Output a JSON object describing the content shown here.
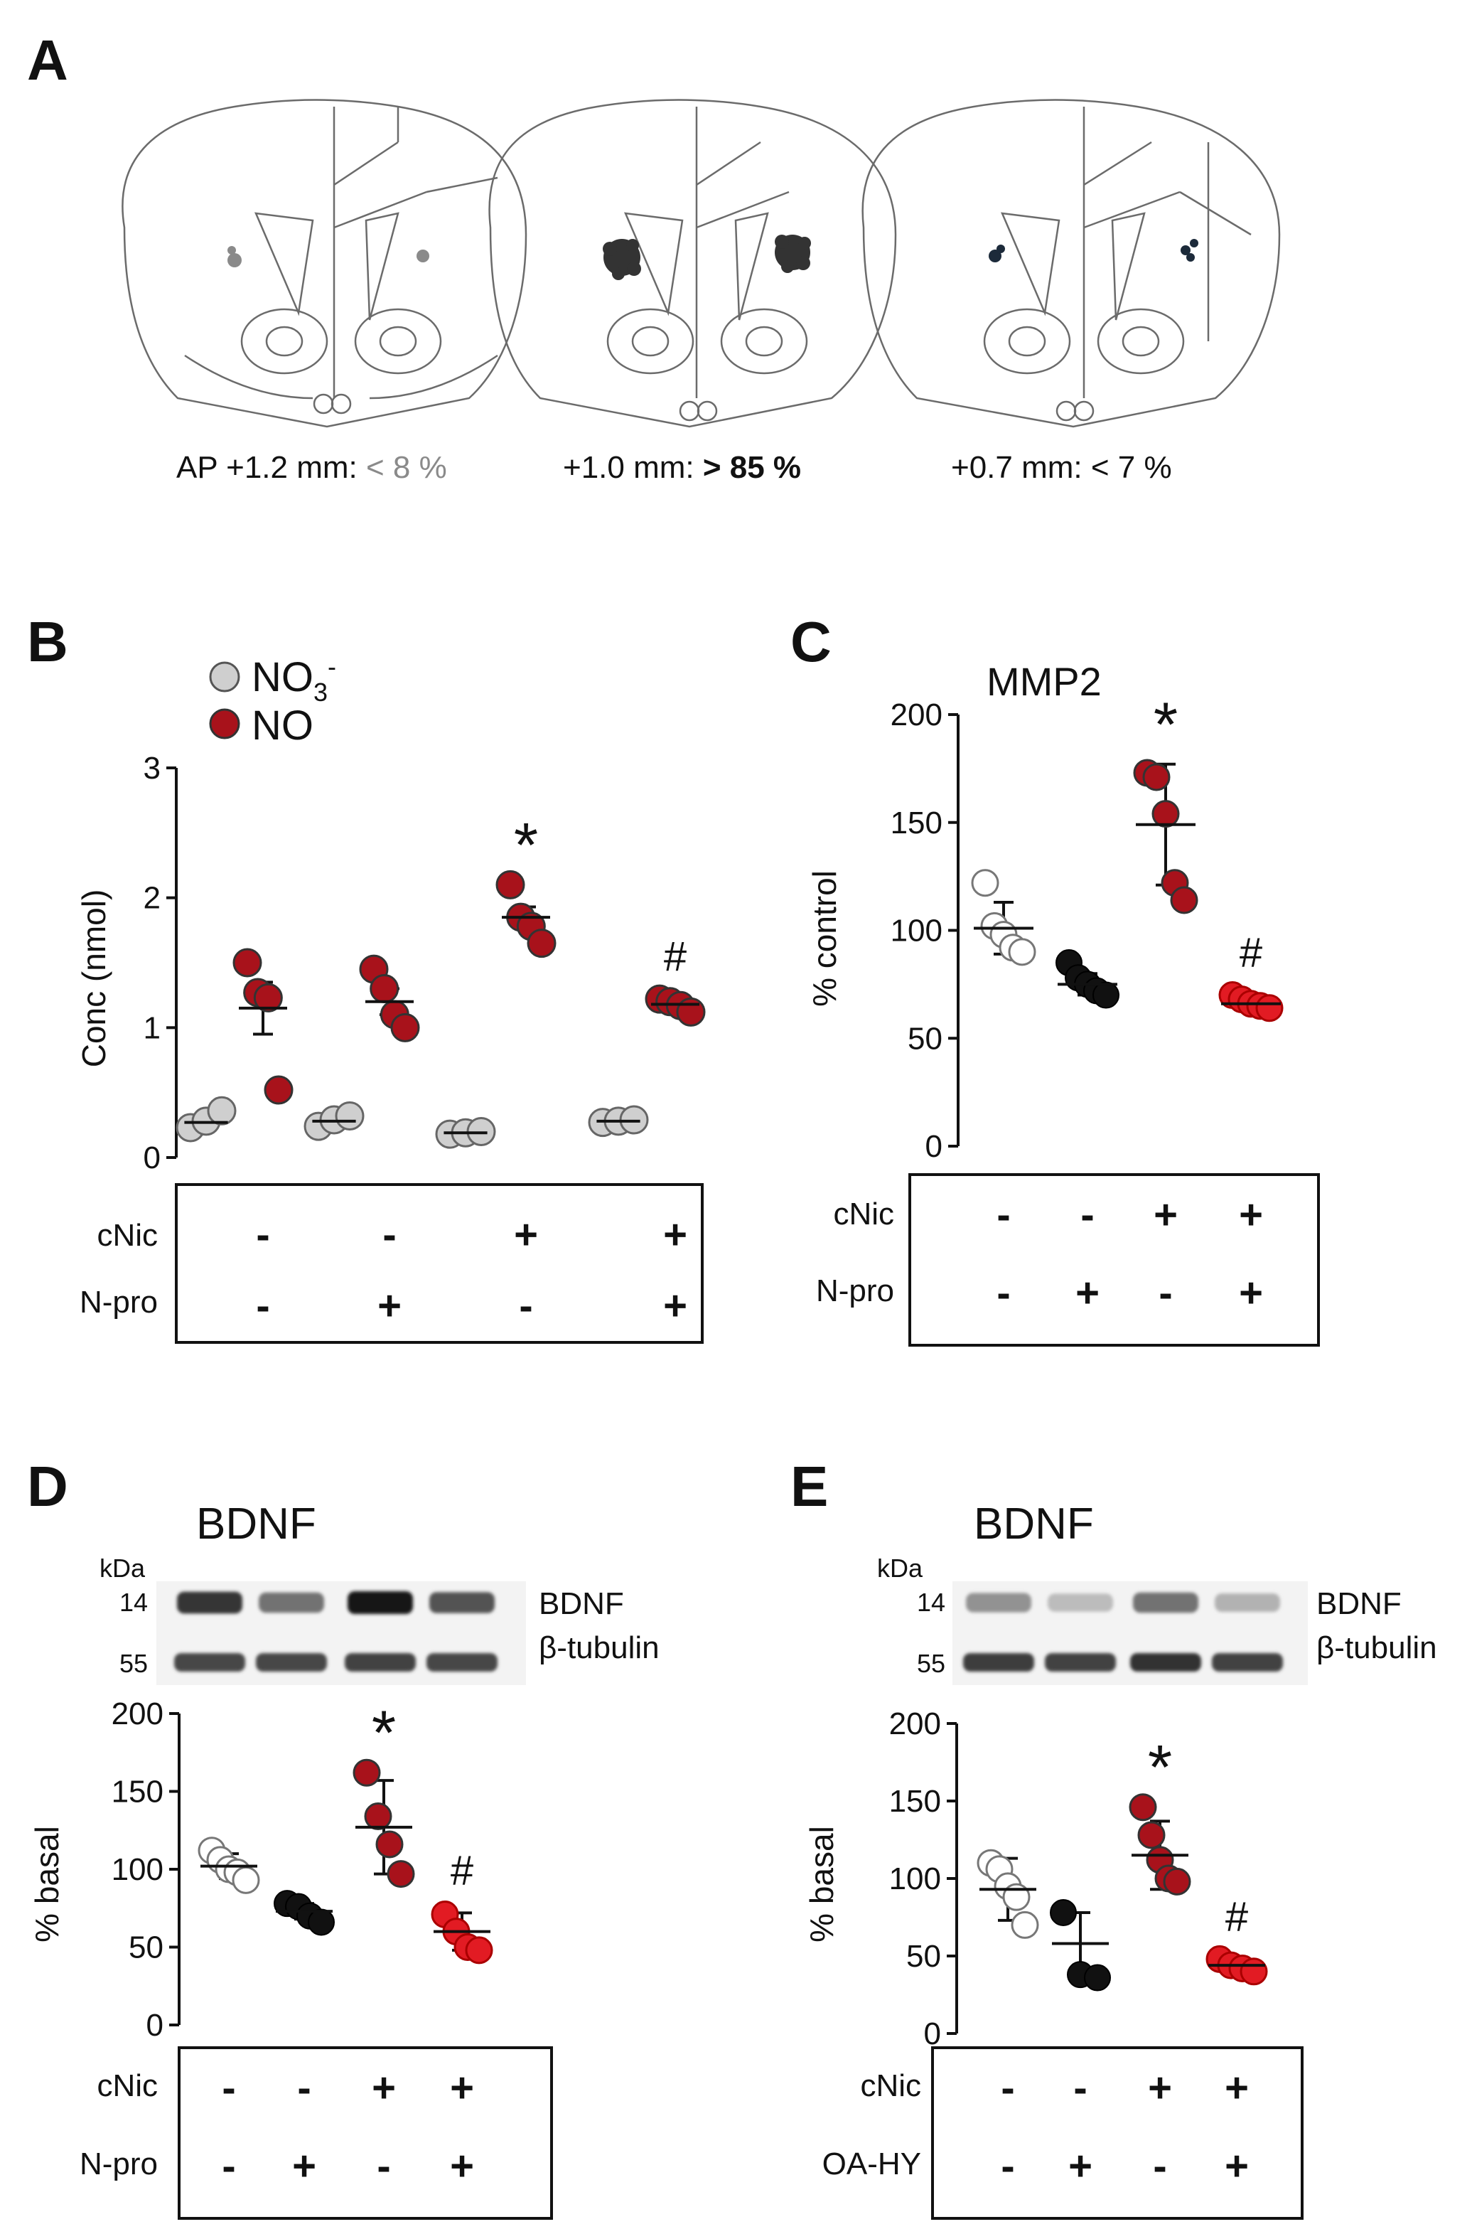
{
  "colors": {
    "no3": "#cfcfcf",
    "no": "#a8121b",
    "black": "#111111",
    "red": "#e21b23",
    "open": "#ffffff",
    "stroke": "#555555"
  },
  "panelA": {
    "label": "A",
    "sections": [
      {
        "prefix": "AP +1.2 mm: ",
        "value": "< 8 %",
        "site_color": "#8a8a8a"
      },
      {
        "prefix": "+1.0 mm: ",
        "value": "> 85 %",
        "site_color": "#333333"
      },
      {
        "prefix": "+0.7 mm: ",
        "value": "< 7 %",
        "site_color": "#1c2a3a"
      }
    ]
  },
  "treatments": {
    "cNic_label": "cNic",
    "npro_label": "N-pro",
    "oahy_label": "OA-HY",
    "cNic": [
      "-",
      "-",
      "+",
      "+"
    ],
    "second": [
      "-",
      "+",
      "-",
      "+"
    ]
  },
  "western": {
    "kda_label": "kDa",
    "mw_14": "14",
    "mw_55": "55",
    "band_bdnf": "BDNF",
    "band_tubulin": "β-tubulin"
  },
  "chart_data": [
    {
      "panel": "B",
      "type": "scatter",
      "title": "",
      "ylabel": "Conc (nmol)",
      "ylim": [
        0,
        3
      ],
      "yticks": [
        "0",
        "1",
        "2",
        "3"
      ],
      "legend": {
        "position": "top-left",
        "entries": [
          {
            "name": "NO3-",
            "text": "NO",
            "sub": "3",
            "sup": "-",
            "color": "no3"
          },
          {
            "name": "NO",
            "text": "NO",
            "color": "no"
          }
        ]
      },
      "groups": [
        {
          "mean": 0.27,
          "points": [
            0.23,
            0.28,
            0.36
          ],
          "color": "no3"
        },
        {
          "mean": 1.15,
          "sem": 0.2,
          "points": [
            1.5,
            1.27,
            1.23,
            0.52
          ],
          "color": "no"
        },
        {
          "mean": 0.28,
          "points": [
            0.24,
            0.29,
            0.32
          ],
          "color": "no3"
        },
        {
          "mean": 1.2,
          "sem": 0.1,
          "points": [
            1.45,
            1.3,
            1.1,
            1.0
          ],
          "color": "no"
        },
        {
          "mean": 0.19,
          "points": [
            0.18,
            0.19,
            0.2
          ],
          "color": "no3"
        },
        {
          "mean": 1.85,
          "sem": 0.08,
          "points": [
            2.1,
            1.85,
            1.78,
            1.65
          ],
          "color": "no"
        },
        {
          "mean": 0.28,
          "points": [
            0.27,
            0.28,
            0.29
          ],
          "color": "no3"
        },
        {
          "mean": 1.18,
          "sem": 0.03,
          "points": [
            1.22,
            1.2,
            1.17,
            1.12
          ],
          "color": "no"
        }
      ],
      "annotations": [
        {
          "text": "*",
          "group": 5
        },
        {
          "text": "#",
          "group": 7
        }
      ]
    },
    {
      "panel": "C",
      "type": "scatter",
      "title": "MMP2",
      "ylabel": "% control",
      "ylim": [
        0,
        200
      ],
      "yticks": [
        "0",
        "50",
        "100",
        "150",
        "200"
      ],
      "groups": [
        {
          "mean": 101,
          "sd": 12,
          "points": [
            122,
            102,
            98,
            92,
            90
          ],
          "style": "open"
        },
        {
          "mean": 75,
          "sd": 5,
          "points": [
            85,
            78,
            75,
            72,
            70
          ],
          "style": "black"
        },
        {
          "mean": 149,
          "sd": 28,
          "points": [
            173,
            171,
            154,
            122,
            114
          ],
          "style": "dark"
        },
        {
          "mean": 66,
          "sd": 2,
          "points": [
            70,
            68,
            66,
            65,
            64
          ],
          "style": "red"
        }
      ],
      "annotations": [
        {
          "text": "*",
          "group": 2
        },
        {
          "text": "#",
          "group": 3
        }
      ]
    },
    {
      "panel": "D",
      "type": "scatter",
      "title": "BDNF",
      "ylabel": "% basal",
      "ylim": [
        0,
        200
      ],
      "yticks": [
        "0",
        "50",
        "100",
        "150",
        "200"
      ],
      "bands": {
        "bdnf": [
          0.85,
          0.55,
          1.0,
          0.7
        ],
        "tubulin": [
          0.8,
          0.8,
          0.82,
          0.8
        ]
      },
      "groups": [
        {
          "mean": 102,
          "sd": 8,
          "points": [
            112,
            106,
            100,
            98,
            93
          ],
          "style": "open"
        },
        {
          "mean": 73,
          "sd": 5,
          "points": [
            78,
            76,
            70,
            66
          ],
          "style": "black"
        },
        {
          "mean": 127,
          "sd": 30,
          "points": [
            162,
            134,
            116,
            97
          ],
          "style": "dark"
        },
        {
          "mean": 60,
          "sd": 12,
          "points": [
            71,
            60,
            50,
            48
          ],
          "style": "red"
        }
      ],
      "annotations": [
        {
          "text": "*",
          "group": 2
        },
        {
          "text": "#",
          "group": 3
        }
      ]
    },
    {
      "panel": "E",
      "type": "scatter",
      "title": "BDNF",
      "ylabel": "% basal",
      "ylim": [
        0,
        200
      ],
      "yticks": [
        "0",
        "50",
        "100",
        "150",
        "200"
      ],
      "bands": {
        "bdnf": [
          0.4,
          0.2,
          0.55,
          0.25
        ],
        "tubulin": [
          0.85,
          0.82,
          0.9,
          0.82
        ]
      },
      "groups": [
        {
          "mean": 93,
          "sd": 20,
          "points": [
            110,
            106,
            95,
            88,
            70
          ],
          "style": "open"
        },
        {
          "mean": 58,
          "sd": 20,
          "points": [
            78,
            38,
            36
          ],
          "style": "black"
        },
        {
          "mean": 115,
          "sd": 22,
          "points": [
            146,
            128,
            112,
            100,
            98
          ],
          "style": "dark"
        },
        {
          "mean": 44,
          "sd": 4,
          "points": [
            48,
            44,
            42,
            40
          ],
          "style": "red"
        }
      ],
      "annotations": [
        {
          "text": "*",
          "group": 2
        },
        {
          "text": "#",
          "group": 3
        }
      ]
    }
  ]
}
